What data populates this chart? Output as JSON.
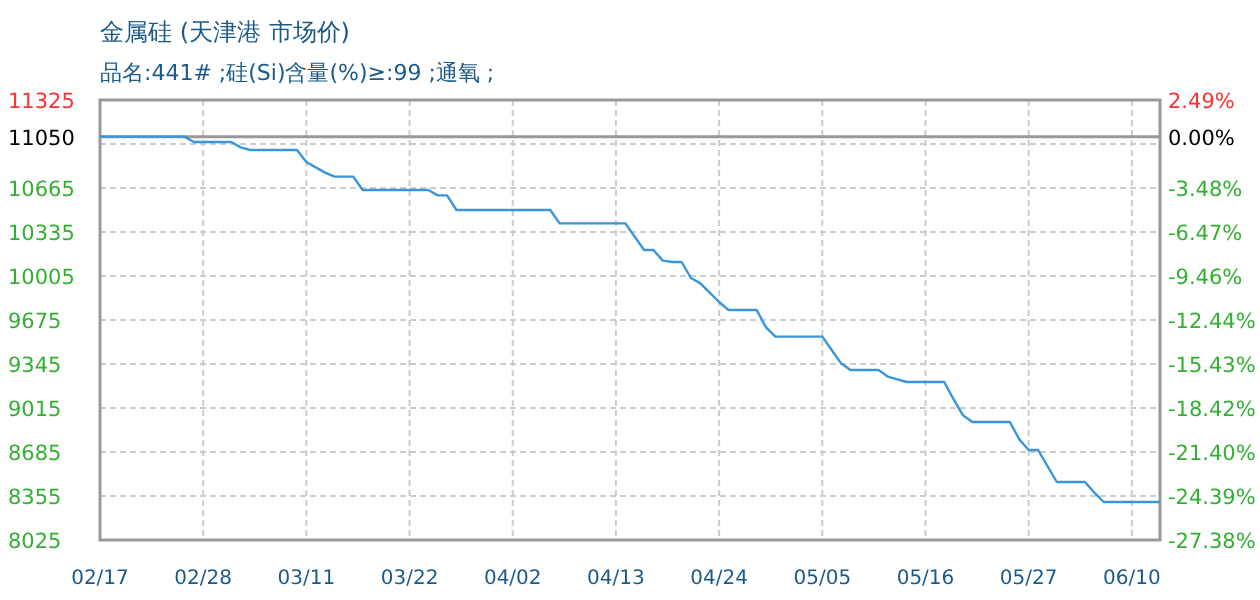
{
  "chart_data": {
    "type": "line",
    "title": "金属硅 (天津港 市场价)",
    "subtitle": "品名:441# ;硅(Si)含量(%)≥:99 ;通氧 ;",
    "categories": [
      "02/17",
      null,
      null,
      null,
      null,
      null,
      null,
      null,
      null,
      null,
      null,
      "02/28",
      null,
      null,
      null,
      null,
      null,
      null,
      null,
      null,
      null,
      null,
      "03/11",
      null,
      null,
      null,
      null,
      null,
      null,
      null,
      null,
      null,
      null,
      "03/22",
      null,
      null,
      null,
      null,
      null,
      null,
      null,
      null,
      null,
      null,
      "04/02",
      null,
      null,
      null,
      null,
      null,
      null,
      null,
      null,
      null,
      null,
      "04/13",
      null,
      null,
      null,
      null,
      null,
      null,
      null,
      null,
      null,
      null,
      "04/24",
      null,
      null,
      null,
      null,
      null,
      null,
      null,
      null,
      null,
      null,
      "05/05",
      null,
      null,
      null,
      null,
      null,
      null,
      null,
      null,
      null,
      null,
      "05/16",
      null,
      null,
      null,
      null,
      null,
      null,
      null,
      null,
      null,
      null,
      "05/27",
      null,
      null,
      null,
      null,
      null,
      null,
      null,
      null,
      null,
      null,
      "06/10",
      null,
      null,
      null
    ],
    "series": [
      {
        "color": "#3a96d8",
        "values": [
          11050,
          11050,
          11050,
          11050,
          11050,
          11050,
          11050,
          11050,
          11050,
          11050,
          11010,
          11010,
          11010,
          11010,
          11010,
          10970,
          10950,
          10950,
          10950,
          10950,
          10950,
          10950,
          10860,
          10820,
          10780,
          10750,
          10750,
          10750,
          10650,
          10650,
          10650,
          10650,
          10650,
          10650,
          10650,
          10650,
          10610,
          10610,
          10500,
          10500,
          10500,
          10500,
          10500,
          10500,
          10500,
          10500,
          10500,
          10500,
          10500,
          10400,
          10400,
          10400,
          10400,
          10400,
          10400,
          10400,
          10400,
          10300,
          10200,
          10200,
          10120,
          10110,
          10110,
          9990,
          9950,
          9880,
          9810,
          9750,
          9750,
          9750,
          9750,
          9620,
          9550,
          9550,
          9550,
          9550,
          9550,
          9550,
          9450,
          9350,
          9300,
          9300,
          9300,
          9300,
          9250,
          9230,
          9210,
          9210,
          9210,
          9210,
          9210,
          9080,
          8960,
          8910,
          8910,
          8910,
          8910,
          8910,
          8780,
          8700,
          8700,
          8580,
          8460,
          8460,
          8460,
          8460,
          8380,
          8310,
          8310,
          8310,
          8310,
          8310,
          8310,
          8310
        ]
      }
    ],
    "ylim": [
      8025,
      11325
    ],
    "yticks": [
      8025,
      8355,
      8685,
      9015,
      9345,
      9675,
      10005,
      10335,
      10665,
      {
        "value": 10995,
        "label": null
      },
      11050,
      11325
    ],
    "y2lim": [
      -27.38,
      2.49
    ],
    "y2ticks": [
      {
        "value": -27.38,
        "label": "-27.38%"
      },
      {
        "value": -24.39,
        "label": "-24.39%"
      },
      {
        "value": -21.4,
        "label": "-21.40%"
      },
      {
        "value": -18.42,
        "label": "-18.42%"
      },
      {
        "value": -15.43,
        "label": "-15.43%"
      },
      {
        "value": -12.44,
        "label": "-12.44%"
      },
      {
        "value": -9.46,
        "label": "-9.46%"
      },
      {
        "value": -6.47,
        "label": "-6.47%"
      },
      {
        "value": -3.48,
        "label": "-3.48%"
      },
      {
        "value": 0,
        "label": "0.00%"
      },
      {
        "value": 2.49,
        "label": "2.49%"
      }
    ],
    "ref_lines": [
      {
        "axis": "y",
        "value": 11050,
        "color": "#999999"
      }
    ],
    "grid": true
  }
}
